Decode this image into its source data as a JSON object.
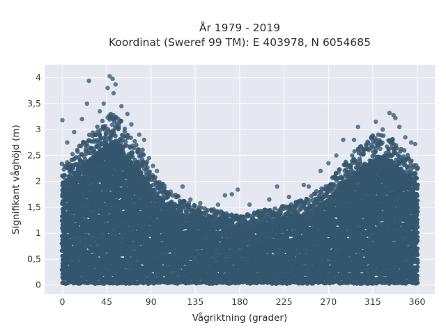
{
  "chart_data": {
    "type": "scatter",
    "title_lines": [
      "År 1979 - 2019",
      "Koordinat (Sweref 99 TM): E 403978, N 6054685"
    ],
    "xlabel": "Vågriktning (grader)",
    "ylabel": "Signifikant våghöjd (m)",
    "xlim": [
      -18,
      378
    ],
    "ylim": [
      -0.18,
      4.25
    ],
    "xticks": [
      0,
      45,
      90,
      135,
      180,
      225,
      270,
      315,
      360
    ],
    "xtick_labels": [
      "0",
      "45",
      "90",
      "135",
      "180",
      "225",
      "270",
      "315",
      "360"
    ],
    "yticks": [
      0,
      0.5,
      1,
      1.5,
      2,
      2.5,
      3,
      3.5,
      4
    ],
    "ytick_labels": [
      "0",
      "0,5",
      "1",
      "1,5",
      "2",
      "2,5",
      "3",
      "3,5",
      "4"
    ],
    "grid": true,
    "legend": "none",
    "colors": {
      "marker": "#34566e",
      "plot_bg": "#e5e8f0",
      "grid": "#ffffff"
    },
    "envelope": {
      "x": [
        0,
        15,
        30,
        45,
        55,
        65,
        80,
        90,
        100,
        115,
        135,
        160,
        180,
        200,
        225,
        250,
        270,
        290,
        305,
        320,
        335,
        350,
        360
      ],
      "ymax": [
        2.3,
        2.6,
        2.9,
        3.2,
        3.3,
        2.9,
        2.6,
        2.15,
        1.95,
        1.7,
        1.5,
        1.4,
        1.3,
        1.4,
        1.5,
        1.65,
        1.95,
        2.4,
        2.7,
        2.9,
        2.8,
        2.5,
        2.3
      ]
    },
    "outliers": [
      {
        "x": 0,
        "y": 3.18
      },
      {
        "x": 27,
        "y": 3.94
      },
      {
        "x": 48,
        "y": 4.03
      },
      {
        "x": 51,
        "y": 3.98
      },
      {
        "x": 54,
        "y": 3.87
      },
      {
        "x": 46,
        "y": 3.8
      },
      {
        "x": 52,
        "y": 3.7
      },
      {
        "x": 25,
        "y": 3.5
      },
      {
        "x": 42,
        "y": 3.5
      },
      {
        "x": 60,
        "y": 3.45
      },
      {
        "x": 38,
        "y": 3.35
      },
      {
        "x": 20,
        "y": 3.2
      },
      {
        "x": 66,
        "y": 3.3
      },
      {
        "x": 70,
        "y": 3.1
      },
      {
        "x": 78,
        "y": 2.9
      },
      {
        "x": 83,
        "y": 2.8
      },
      {
        "x": 12,
        "y": 2.95
      },
      {
        "x": 5,
        "y": 2.75
      },
      {
        "x": 88,
        "y": 2.45
      },
      {
        "x": 92,
        "y": 2.3
      },
      {
        "x": 96,
        "y": 2.2
      },
      {
        "x": 102,
        "y": 1.95
      },
      {
        "x": 110,
        "y": 1.8
      },
      {
        "x": 122,
        "y": 1.9
      },
      {
        "x": 130,
        "y": 1.65
      },
      {
        "x": 140,
        "y": 1.58
      },
      {
        "x": 158,
        "y": 1.55
      },
      {
        "x": 165,
        "y": 1.73
      },
      {
        "x": 172,
        "y": 1.75
      },
      {
        "x": 178,
        "y": 1.84
      },
      {
        "x": 190,
        "y": 1.55
      },
      {
        "x": 210,
        "y": 1.65
      },
      {
        "x": 218,
        "y": 1.9
      },
      {
        "x": 230,
        "y": 1.7
      },
      {
        "x": 245,
        "y": 1.93
      },
      {
        "x": 250,
        "y": 1.9
      },
      {
        "x": 262,
        "y": 2.2
      },
      {
        "x": 270,
        "y": 2.35
      },
      {
        "x": 278,
        "y": 2.5
      },
      {
        "x": 285,
        "y": 2.8
      },
      {
        "x": 296,
        "y": 2.8
      },
      {
        "x": 300,
        "y": 3.05
      },
      {
        "x": 318,
        "y": 3.15
      },
      {
        "x": 325,
        "y": 3.0
      },
      {
        "x": 332,
        "y": 3.32
      },
      {
        "x": 336,
        "y": 3.28
      },
      {
        "x": 338,
        "y": 3.22
      },
      {
        "x": 342,
        "y": 3.05
      },
      {
        "x": 348,
        "y": 2.85
      },
      {
        "x": 354,
        "y": 2.75
      },
      {
        "x": 358,
        "y": 2.72
      }
    ]
  }
}
